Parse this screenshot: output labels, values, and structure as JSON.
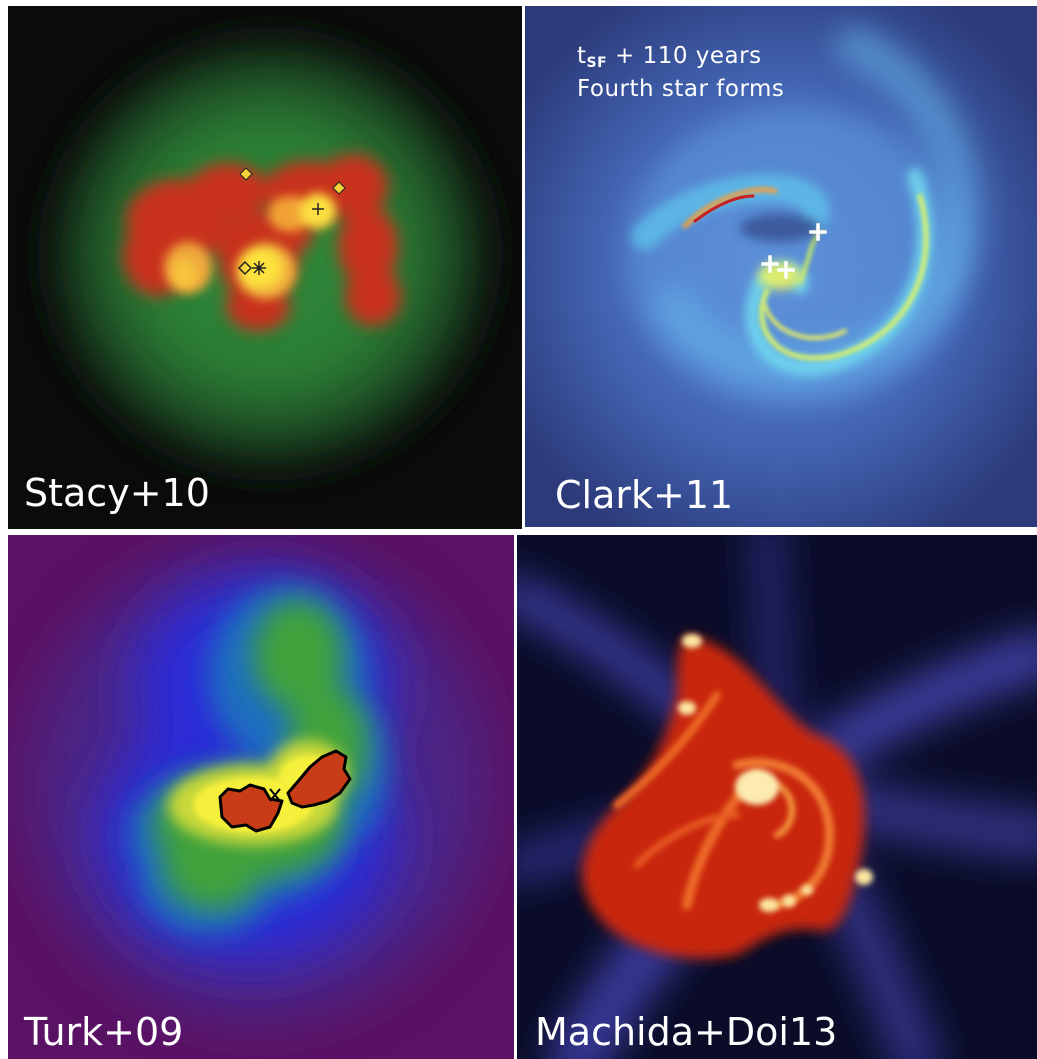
{
  "panels": {
    "top_left": {
      "label": "Stacy+10"
    },
    "top_right": {
      "label": "Clark+11",
      "annotation": {
        "t": "t",
        "sub": "SF",
        "time": " + 110 years",
        "line2": "Fourth star forms"
      }
    },
    "bottom_left": {
      "label": "Turk+09"
    },
    "bottom_right": {
      "label": "Machida+Doi13"
    }
  }
}
